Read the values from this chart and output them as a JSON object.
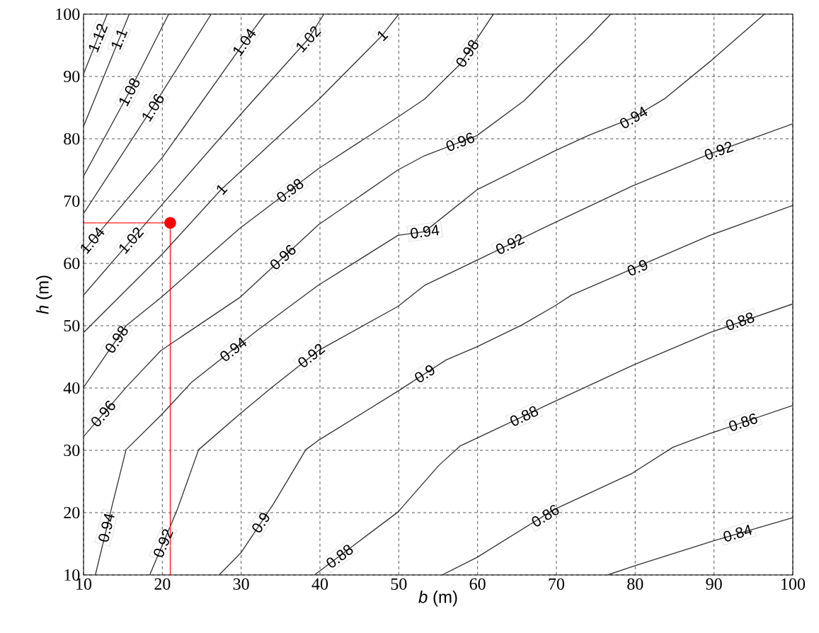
{
  "chart_data": {
    "type": "line",
    "xlabel": "*b* (m)",
    "ylabel": "*h* (m)",
    "xlim": [
      10,
      100
    ],
    "ylim": [
      10,
      100
    ],
    "xticks": [
      10,
      20,
      30,
      40,
      50,
      60,
      70,
      80,
      90,
      100
    ],
    "yticks": [
      10,
      20,
      30,
      40,
      50,
      60,
      70,
      80,
      90,
      100
    ],
    "grid": true,
    "marker": "none",
    "series": [
      {
        "color": "#333333",
        "x": [
          76.5,
          80,
          90,
          100
        ],
        "values": [
          10,
          11.5,
          15.5,
          19.2
        ]
      },
      {
        "color": "#333333",
        "x": [
          55.5,
          59.9,
          69.7,
          79.6,
          84.8,
          89.5,
          100
        ],
        "values": [
          10,
          12.8,
          20.5,
          26.3,
          30.5,
          32.7,
          37.2
        ]
      },
      {
        "color": "#333333",
        "x": [
          39.3,
          49.9,
          55.1,
          57.8,
          69.7,
          79.6,
          89.5,
          100
        ],
        "values": [
          10,
          20.1,
          27.6,
          30.7,
          37.8,
          43.6,
          48.9,
          53.5
        ]
      },
      {
        "color": "#333333",
        "x": [
          27.2,
          30,
          34.2,
          38.2,
          39.8,
          49.9,
          56,
          59.9,
          65.6,
          69.7,
          71.9,
          79.6,
          89.5,
          100
        ],
        "values": [
          10,
          13.6,
          21.6,
          30.1,
          31.6,
          39.5,
          44.5,
          46.6,
          50.1,
          53.1,
          54.9,
          59.1,
          64.5,
          69.3
        ]
      },
      {
        "color": "#333333",
        "x": [
          18.4,
          21.9,
          24.6,
          29.8,
          33.8,
          39.8,
          49.9,
          53.3,
          59.9,
          69.7,
          79.6,
          89.5,
          100
        ],
        "values": [
          10,
          20.5,
          30.1,
          35.8,
          40,
          46,
          53.1,
          56.5,
          60.5,
          66.5,
          72.4,
          77.6,
          82.4
        ]
      },
      {
        "color": "#333333",
        "x": [
          11.5,
          13.8,
          15.4,
          19.8,
          23.7,
          32,
          39.8,
          49.9,
          53.3,
          59.9,
          69.7,
          74,
          79.6,
          83.7,
          89.5,
          96.4
        ],
        "values": [
          10,
          22,
          30.1,
          35.6,
          40.9,
          49.2,
          56.5,
          64.5,
          65.1,
          71.8,
          78,
          80.5,
          83.3,
          86.4,
          92.4,
          100
        ]
      },
      {
        "color": "#333333",
        "x": [
          10,
          15.4,
          19.8,
          29.8,
          39.8,
          49.9,
          53.3,
          59.9,
          65.9,
          69.7,
          74,
          76.9
        ],
        "values": [
          32.2,
          40.1,
          46,
          54.5,
          66.2,
          75,
          77.3,
          80.5,
          86.1,
          90.9,
          96.2,
          100
        ]
      },
      {
        "color": "#333333",
        "x": [
          10,
          15.4,
          19.8,
          29.8,
          39.8,
          49.9,
          53.3,
          57.8,
          62
        ],
        "values": [
          40.1,
          50,
          54.5,
          65.6,
          75.2,
          83.5,
          86.4,
          92,
          100
        ]
      },
      {
        "color": "#333333",
        "x": [
          10,
          20,
          27.5,
          40,
          47.9,
          50
        ],
        "values": [
          48.9,
          61.5,
          71.9,
          86.5,
          96.6,
          100
        ]
      },
      {
        "color": "#333333",
        "x": [
          10,
          18.7,
          30,
          38.5,
          40.5
        ],
        "values": [
          54.9,
          67.6,
          84,
          96,
          100
        ]
      },
      {
        "color": "#333333",
        "x": [
          10,
          20,
          30.4,
          33
        ],
        "values": [
          62,
          77,
          95.5,
          100
        ]
      },
      {
        "color": "#333333",
        "x": [
          10,
          18.5,
          26.2
        ],
        "values": [
          68,
          84.5,
          100
        ]
      },
      {
        "color": "#333333",
        "x": [
          10,
          15.8,
          20.8
        ],
        "values": [
          74,
          87.5,
          100
        ]
      },
      {
        "color": "#333333",
        "x": [
          10,
          12.9,
          15.8
        ],
        "values": [
          82,
          91,
          100
        ]
      },
      {
        "color": "#333333",
        "x": [
          10,
          11.5,
          13
        ],
        "values": [
          90.4,
          95.2,
          100
        ]
      },
      {
        "color": "#ff0000",
        "x": [
          10,
          21
        ],
        "values": [
          66.5,
          66.5
        ]
      },
      {
        "color": "#ff0000",
        "x": [
          21,
          21
        ],
        "values": [
          10,
          66.5
        ]
      },
      {
        "type": "scatter",
        "marker": "circle",
        "color": "#ff0000",
        "x": [
          21
        ],
        "values": [
          66.5
        ]
      }
    ],
    "annotations": [
      {
        "text": "0.84",
        "x": 93,
        "y": 16.7
      },
      {
        "text": "0.86",
        "x": 68.6,
        "y": 19.5
      },
      {
        "text": "0.86",
        "x": 93.7,
        "y": 34.5
      },
      {
        "text": "0.88",
        "x": 42.5,
        "y": 13
      },
      {
        "text": "0.88",
        "x": 65.9,
        "y": 35.5
      },
      {
        "text": "0.88",
        "x": 93.3,
        "y": 50.7
      },
      {
        "text": "0.9",
        "x": 32.5,
        "y": 18.4
      },
      {
        "text": "0.9",
        "x": 53.3,
        "y": 42.3
      },
      {
        "text": "0.9",
        "x": 80.3,
        "y": 59.3
      },
      {
        "text": "0.92",
        "x": 20.1,
        "y": 15.1
      },
      {
        "text": "0.92",
        "x": 38.9,
        "y": 45.2
      },
      {
        "text": "0.92",
        "x": 64.1,
        "y": 63.1
      },
      {
        "text": "0.92",
        "x": 90.6,
        "y": 78.1
      },
      {
        "text": "0.94",
        "x": 12.9,
        "y": 17.6
      },
      {
        "text": "0.94",
        "x": 29,
        "y": 46.2
      },
      {
        "text": "0.94",
        "x": 53.3,
        "y": 65.1
      },
      {
        "text": "0.94",
        "x": 79.8,
        "y": 83.4
      },
      {
        "text": "0.96",
        "x": 12.5,
        "y": 35.9
      },
      {
        "text": "0.96",
        "x": 35.3,
        "y": 61
      },
      {
        "text": "0.96",
        "x": 57.8,
        "y": 79.5
      },
      {
        "text": "0.98",
        "x": 14.2,
        "y": 47.8
      },
      {
        "text": "0.98",
        "x": 36.2,
        "y": 71.7
      },
      {
        "text": "0.98",
        "x": 58.7,
        "y": 93.7
      },
      {
        "text": "1",
        "x": 27.5,
        "y": 71.9
      },
      {
        "text": "1",
        "x": 47.9,
        "y": 96.6
      },
      {
        "text": "1.02",
        "x": 16,
        "y": 63.7
      },
      {
        "text": "1.02",
        "x": 38.5,
        "y": 96
      },
      {
        "text": "1.04",
        "x": 11.1,
        "y": 63.7
      },
      {
        "text": "1.04",
        "x": 30.4,
        "y": 95.5
      },
      {
        "text": "1.06",
        "x": 18.8,
        "y": 85
      },
      {
        "text": "1.08",
        "x": 15.8,
        "y": 87.5
      },
      {
        "text": "1.1",
        "x": 14.5,
        "y": 96
      },
      {
        "text": "1.12",
        "x": 11.8,
        "y": 96.2
      }
    ]
  }
}
